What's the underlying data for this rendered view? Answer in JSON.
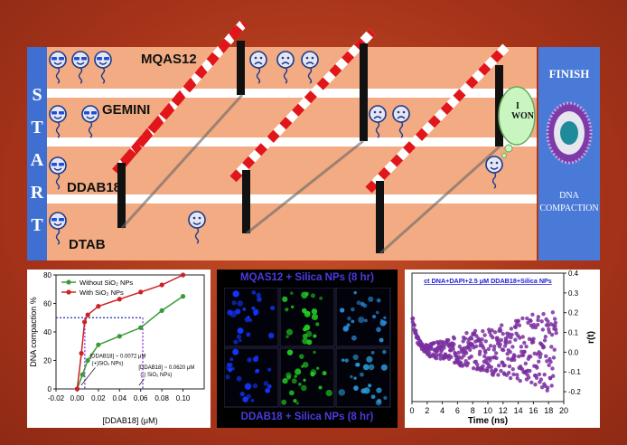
{
  "track": {
    "start_letters": [
      "S",
      "T",
      "A",
      "R",
      "T"
    ],
    "lanes": [
      {
        "name": "MQAS12"
      },
      {
        "name": "GEMINI"
      },
      {
        "name": "DDAB18"
      },
      {
        "name": "DTAB"
      }
    ],
    "finish_label": "FINISH",
    "dna_label_line1": "DNA",
    "dna_label_line2": "COMPACTION",
    "bubble_line1": "I",
    "bubble_line2": "WON"
  },
  "micro": {
    "top_title": "MQAS12 + Silica NPs (8 hr)",
    "bottom_title": "DDAB18 + Silica NPs (8 hr)"
  },
  "chart_data": [
    {
      "type": "line",
      "xlabel": "[DDAB18] (μM)",
      "ylabel": "DNA compaction %",
      "xlim": [
        -0.02,
        0.12
      ],
      "ylim": [
        0,
        80
      ],
      "xticks": [
        "-0.02",
        "0.00",
        "0.02",
        "0.04",
        "0.06",
        "0.08",
        "0.10"
      ],
      "yticks": [
        "0",
        "20",
        "40",
        "60",
        "80"
      ],
      "series": [
        {
          "name": "Without SiO₂ NPs",
          "color": "#3a9a3a",
          "x": [
            0,
            0.005,
            0.01,
            0.02,
            0.04,
            0.06,
            0.08,
            0.1
          ],
          "y": [
            0,
            10,
            20,
            31,
            37,
            43,
            55,
            65
          ]
        },
        {
          "name": "With SiO₂ NPs",
          "color": "#cc2222",
          "x": [
            0,
            0.004,
            0.007,
            0.01,
            0.02,
            0.04,
            0.06,
            0.08,
            0.1
          ],
          "y": [
            0,
            25,
            47,
            52,
            58,
            63,
            68,
            73,
            80
          ]
        }
      ],
      "annotations": [
        {
          "text1": "[DDAB18] ~ 0.0072 μM",
          "text2": "(+)SiO₂ NPs)"
        },
        {
          "text1": "[DDAB18] ~ 0.0620 μM",
          "text2": "(-) SiO₂ NPs)"
        }
      ],
      "legend": "top-left"
    },
    {
      "type": "scatter",
      "title": "ct DNA+DAPI+2.5 μM DDAB18+Silica NPs",
      "xlabel": "Time (ns)",
      "ylabel": "r(t)",
      "xlim": [
        0,
        20
      ],
      "ylim": [
        -0.25,
        0.4
      ],
      "xticks": [
        "0",
        "2",
        "4",
        "6",
        "8",
        "10",
        "12",
        "14",
        "16",
        "18",
        "20"
      ],
      "yticks": [
        "-0.2",
        "-0.1",
        "0.0",
        "0.1",
        "0.2",
        "0.3",
        "0.4"
      ],
      "color": "#7a2fa0",
      "trend": "initial value about 0.18 decaying to about 0.02 by 2 ns, then points scatter around 0.0 with spread growing from about ±0.03 at 2 ns to about ±0.2 at 19 ns"
    }
  ],
  "colors": {
    "track": "#f2ab82",
    "start": "#3f6fd1",
    "finish": "#4a7ad8",
    "background": "#b03a1c",
    "barrier_red": "#e0161a"
  }
}
